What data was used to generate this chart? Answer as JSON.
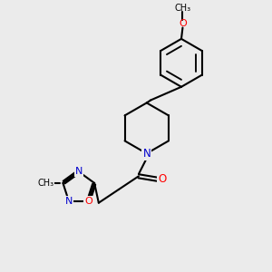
{
  "background_color": "#ebebeb",
  "bond_color": "#000000",
  "nitrogen_color": "#0000cc",
  "oxygen_color": "#ff0000",
  "bond_width": 1.5,
  "figsize": [
    3.0,
    3.0
  ],
  "dpi": 100,
  "xlim": [
    0,
    10
  ],
  "ylim": [
    0,
    10
  ]
}
